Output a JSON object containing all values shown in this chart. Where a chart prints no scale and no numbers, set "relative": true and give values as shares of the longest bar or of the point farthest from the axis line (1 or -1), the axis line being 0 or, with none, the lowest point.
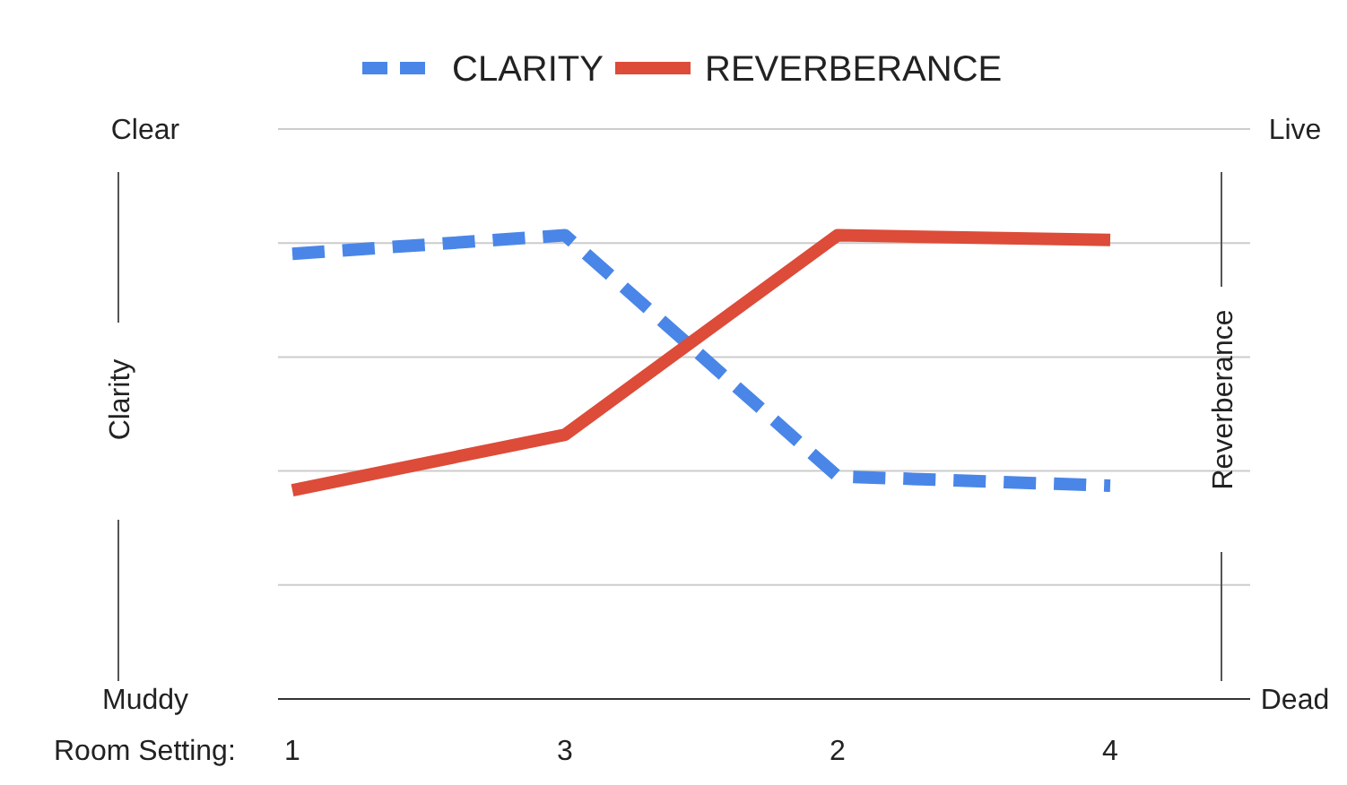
{
  "chart_data": {
    "type": "line",
    "xlabel": "Room Setting:",
    "ylabel": "Clarity",
    "y2label": "Reverberance",
    "categories": [
      "1",
      "3",
      "2",
      "4"
    ],
    "series": [
      {
        "name": "CLARITY",
        "color": "#4a86e8",
        "values": [
          0.96,
          1,
          0.48,
          0.46
        ],
        "line_style": "dashed"
      },
      {
        "name": "REVERBERANCE",
        "color": "#dd4b39",
        "values": [
          0.45,
          0.57,
          1,
          0.99
        ],
        "line_style": "solid",
        "axis": "y2"
      }
    ],
    "relative": true,
    "annotations": [
      "Clear",
      "Muddy",
      "Live",
      "Dead"
    ],
    "grid": "y",
    "legend": "top"
  }
}
